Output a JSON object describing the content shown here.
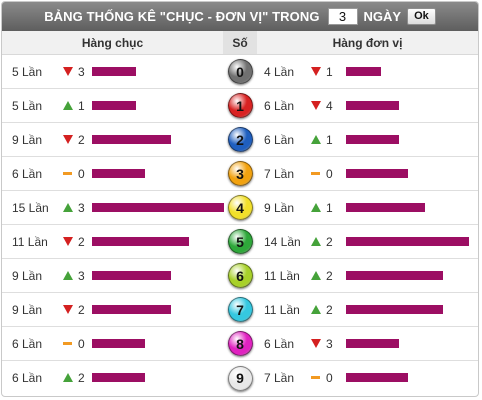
{
  "header": {
    "title": "BẢNG THỐNG KÊ \"CHỤC - ĐƠN VỊ\" TRONG",
    "days_value": "3",
    "days_label": "NGÀY",
    "ok_label": "Ok"
  },
  "columns": {
    "tens": "Hàng chục",
    "digit": "Số",
    "units": "Hàng đơn vị"
  },
  "colors": {
    "bar": "#9c0e63",
    "down": "#d42020",
    "up": "#45a23a",
    "flat": "#f29a22"
  },
  "max_count": 15,
  "rows": [
    {
      "digit": "0",
      "ball_color": "#707070",
      "tens": {
        "count": 5,
        "label": "5 Lần",
        "trend": "down",
        "delta": "3"
      },
      "units": {
        "count": 4,
        "label": "4 Lần",
        "trend": "down",
        "delta": "1"
      }
    },
    {
      "digit": "1",
      "ball_color": "#d92222",
      "tens": {
        "count": 5,
        "label": "5 Lần",
        "trend": "up",
        "delta": "1"
      },
      "units": {
        "count": 6,
        "label": "6 Lần",
        "trend": "down",
        "delta": "4"
      }
    },
    {
      "digit": "2",
      "ball_color": "#1f5fbf",
      "tens": {
        "count": 9,
        "label": "9 Lần",
        "trend": "down",
        "delta": "2"
      },
      "units": {
        "count": 6,
        "label": "6 Lần",
        "trend": "up",
        "delta": "1"
      }
    },
    {
      "digit": "3",
      "ball_color": "#f2a20f",
      "tens": {
        "count": 6,
        "label": "6 Lần",
        "trend": "flat",
        "delta": "0"
      },
      "units": {
        "count": 7,
        "label": "7 Lần",
        "trend": "flat",
        "delta": "0"
      }
    },
    {
      "digit": "4",
      "ball_color": "#f2e02a",
      "tens": {
        "count": 15,
        "label": "15 Lần",
        "trend": "up",
        "delta": "3"
      },
      "units": {
        "count": 9,
        "label": "9 Lần",
        "trend": "up",
        "delta": "1"
      }
    },
    {
      "digit": "5",
      "ball_color": "#2ea83a",
      "tens": {
        "count": 11,
        "label": "11 Lần",
        "trend": "down",
        "delta": "2"
      },
      "units": {
        "count": 14,
        "label": "14 Lần",
        "trend": "up",
        "delta": "2"
      }
    },
    {
      "digit": "6",
      "ball_color": "#a8d12a",
      "tens": {
        "count": 9,
        "label": "9 Lần",
        "trend": "up",
        "delta": "3"
      },
      "units": {
        "count": 11,
        "label": "11 Lần",
        "trend": "up",
        "delta": "2"
      }
    },
    {
      "digit": "7",
      "ball_color": "#35c8e0",
      "tens": {
        "count": 9,
        "label": "9 Lần",
        "trend": "down",
        "delta": "2"
      },
      "units": {
        "count": 11,
        "label": "11 Lần",
        "trend": "up",
        "delta": "2"
      }
    },
    {
      "digit": "8",
      "ball_color": "#e022c0",
      "tens": {
        "count": 6,
        "label": "6 Lần",
        "trend": "flat",
        "delta": "0"
      },
      "units": {
        "count": 6,
        "label": "6 Lần",
        "trend": "down",
        "delta": "3"
      }
    },
    {
      "digit": "9",
      "ball_color": "#e8e8e8",
      "tens": {
        "count": 6,
        "label": "6 Lần",
        "trend": "up",
        "delta": "2"
      },
      "units": {
        "count": 7,
        "label": "7 Lần",
        "trend": "flat",
        "delta": "0"
      }
    }
  ]
}
